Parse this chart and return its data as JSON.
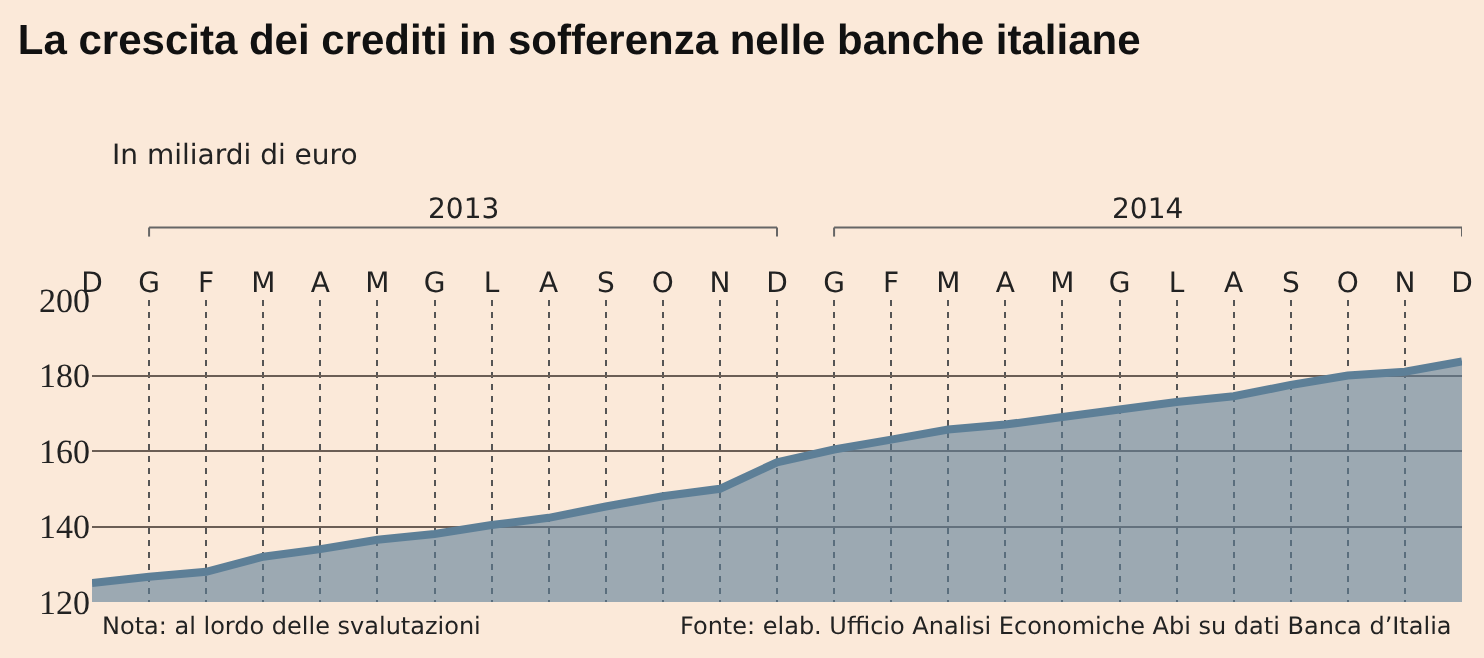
{
  "chart_data": {
    "type": "area",
    "title": "La crescita dei crediti in sofferenza nelle banche italiane",
    "subtitle": "In miliardi di euro",
    "categories": [
      "D",
      "G",
      "F",
      "M",
      "A",
      "M",
      "G",
      "L",
      "A",
      "S",
      "O",
      "N",
      "D",
      "G",
      "F",
      "M",
      "A",
      "M",
      "G",
      "L",
      "A",
      "S",
      "O",
      "N",
      "D"
    ],
    "series": [
      {
        "color": "#5d7f97",
        "values": [
          125,
          126.7,
          128,
          132,
          134,
          136.5,
          138,
          140.4,
          142.3,
          145.3,
          148,
          150,
          157,
          160.4,
          163,
          165.7,
          167,
          169,
          171,
          173,
          174.5,
          177.5,
          180,
          181,
          183.7
        ]
      }
    ],
    "ylim": [
      120,
      200
    ],
    "yticks": [
      120,
      140,
      160,
      180,
      200
    ],
    "grid": true,
    "legend": false,
    "annotations": [
      "2013",
      "2014",
      "Nota: al lordo delle svalutazioni",
      "Fonte: elab. Ufficio Analisi Economiche Abi su dati Banca d’Italia"
    ]
  }
}
